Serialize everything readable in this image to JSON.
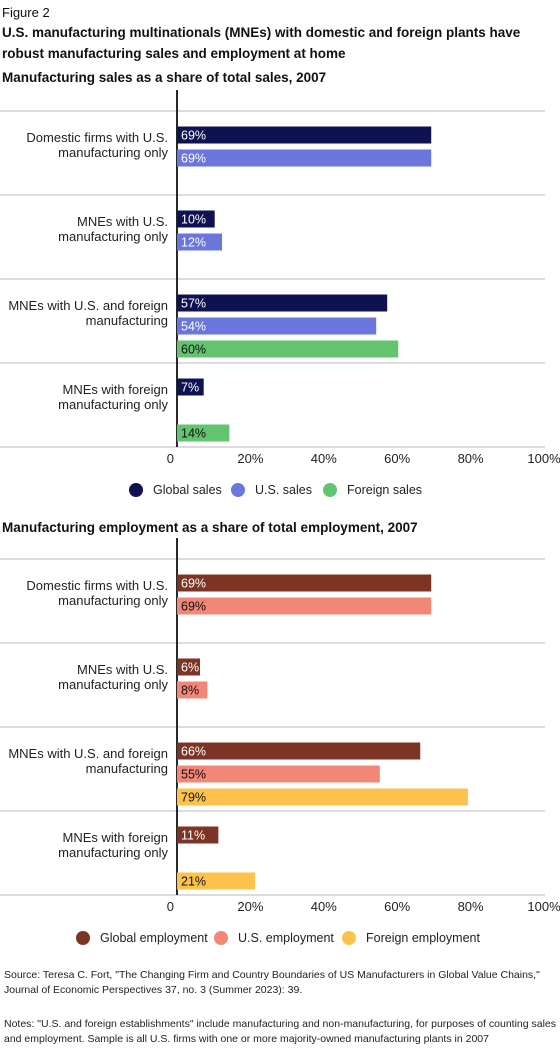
{
  "figure_label": "Figure 2",
  "figure_title": "U.S. manufacturing multinationals (MNEs) with domestic and foreign plants have robust manufacturing sales and employment at home",
  "chart_data": [
    {
      "type": "bar",
      "orientation": "horizontal",
      "title": "Manufacturing sales as a share of total sales, 2007",
      "categories": [
        [
          "Domestic firms with U.S.",
          "manufacturing only"
        ],
        [
          "MNEs with U.S.",
          "manufacturing only"
        ],
        [
          "MNEs with U.S. and foreign",
          "manufacturing"
        ],
        [
          "MNEs with foreign",
          "manufacturing only"
        ]
      ],
      "series": [
        {
          "name": "Global sales",
          "color": "#0f1251",
          "values": [
            69,
            10,
            57,
            7
          ]
        },
        {
          "name": "U.S. sales",
          "color": "#6b76dd",
          "values": [
            69,
            12,
            54,
            null
          ]
        },
        {
          "name": "Foreign sales",
          "color": "#63c46f",
          "values": [
            null,
            null,
            60,
            14
          ]
        }
      ],
      "value_labels": [
        [
          "69%",
          "10%",
          "57%",
          "7%"
        ],
        [
          "69%",
          "12%",
          "54%",
          null
        ],
        [
          null,
          null,
          "60%",
          "14%"
        ]
      ],
      "xlim": [
        0,
        100
      ],
      "xticks": [
        "0",
        "20%",
        "40%",
        "60%",
        "80%",
        "100%"
      ],
      "legend_position": "bottom"
    },
    {
      "type": "bar",
      "orientation": "horizontal",
      "title": "Manufacturing employment as a share of total employment, 2007",
      "categories": [
        [
          "Domestic firms with U.S.",
          "manufacturing only"
        ],
        [
          "MNEs with U.S.",
          "manufacturing only"
        ],
        [
          "MNEs with U.S. and foreign",
          "manufacturing"
        ],
        [
          "MNEs with foreign",
          "manufacturing only"
        ]
      ],
      "series": [
        {
          "name": "Global employment",
          "color": "#7c3524",
          "values": [
            69,
            6,
            66,
            11
          ]
        },
        {
          "name": "U.S. employment",
          "color": "#f28778",
          "values": [
            69,
            8,
            55,
            null
          ]
        },
        {
          "name": "Foreign employment",
          "color": "#fcc24b",
          "values": [
            null,
            null,
            79,
            21
          ]
        }
      ],
      "value_labels": [
        [
          "69%",
          "6%",
          "66%",
          "11%"
        ],
        [
          "69%",
          "8%",
          "55%",
          null
        ],
        [
          null,
          null,
          "79%",
          "21%"
        ]
      ],
      "xlim": [
        0,
        100
      ],
      "xticks": [
        "0",
        "20%",
        "40%",
        "60%",
        "80%",
        "100%"
      ],
      "legend_position": "bottom"
    }
  ],
  "footer": {
    "source": "Source: Teresa C. Fort, \"The Changing Firm and Country Boundaries of US Manufacturers in Global Value Chains,\" Journal of Economic Perspectives 37, no. 3 (Summer 2023): 39.",
    "notes": "Notes: \"U.S. and foreign establishments\" include manufacturing and non-manufacturing, for purposes of counting sales and employment. Sample is all U.S. firms with one or more majority-owned manufacturing plants in 2007"
  }
}
